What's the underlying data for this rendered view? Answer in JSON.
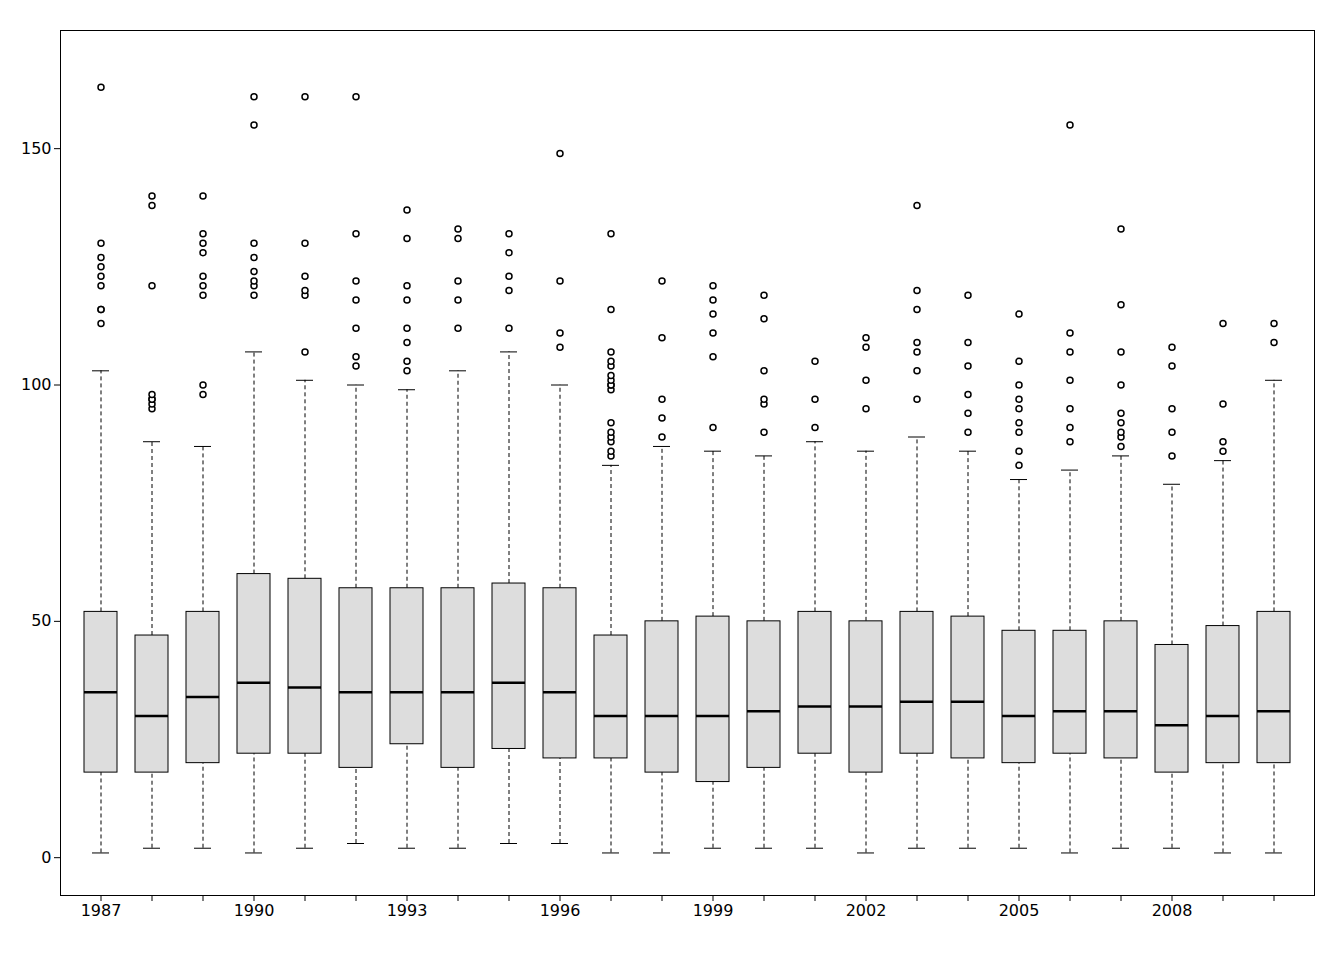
{
  "chart_data": {
    "type": "box",
    "categories": [
      "1987",
      null,
      null,
      "1990",
      null,
      null,
      "1993",
      null,
      null,
      "1996",
      null,
      null,
      "1999",
      null,
      null,
      "2002",
      null,
      null,
      "2005",
      null,
      null,
      "2008",
      null,
      null
    ],
    "values": [
      {
        "whislo": 1,
        "q1": 18,
        "med": 35,
        "q3": 52,
        "whishi": 103,
        "fliers": [
          113,
          116,
          116,
          121,
          123,
          125,
          127,
          130,
          163
        ]
      },
      {
        "whislo": 2,
        "q1": 18,
        "med": 30,
        "q3": 47,
        "whishi": 88,
        "fliers": [
          95,
          96,
          97,
          97,
          98,
          121,
          138,
          140
        ]
      },
      {
        "whislo": 2,
        "q1": 20,
        "med": 34,
        "q3": 52,
        "whishi": 87,
        "fliers": [
          98,
          100,
          119,
          121,
          123,
          128,
          130,
          132,
          140
        ]
      },
      {
        "whislo": 1,
        "q1": 22,
        "med": 37,
        "q3": 60,
        "whishi": 107,
        "fliers": [
          119,
          121,
          122,
          124,
          127,
          130,
          155,
          161
        ]
      },
      {
        "whislo": 2,
        "q1": 22,
        "med": 36,
        "q3": 59,
        "whishi": 101,
        "fliers": [
          107,
          119,
          120,
          123,
          130,
          161
        ]
      },
      {
        "whislo": 3,
        "q1": 19,
        "med": 35,
        "q3": 57,
        "whishi": 100,
        "fliers": [
          104,
          106,
          112,
          118,
          122,
          132,
          161
        ]
      },
      {
        "whislo": 2,
        "q1": 24,
        "med": 35,
        "q3": 57,
        "whishi": 99,
        "fliers": [
          103,
          105,
          109,
          112,
          118,
          121,
          131,
          137
        ]
      },
      {
        "whislo": 2,
        "q1": 19,
        "med": 35,
        "q3": 57,
        "whishi": 103,
        "fliers": [
          112,
          118,
          122,
          131,
          133
        ]
      },
      {
        "whislo": 3,
        "q1": 23,
        "med": 37,
        "q3": 58,
        "whishi": 107,
        "fliers": [
          112,
          120,
          123,
          128,
          132
        ]
      },
      {
        "whislo": 3,
        "q1": 21,
        "med": 35,
        "q3": 57,
        "whishi": 100,
        "fliers": [
          108,
          111,
          122,
          149
        ]
      },
      {
        "whislo": 1,
        "q1": 21,
        "med": 30,
        "q3": 47,
        "whishi": 83,
        "fliers": [
          85,
          86,
          88,
          89,
          90,
          92,
          99,
          100,
          100,
          101,
          102,
          104,
          105,
          107,
          116,
          132
        ]
      },
      {
        "whislo": 1,
        "q1": 18,
        "med": 30,
        "q3": 50,
        "whishi": 87,
        "fliers": [
          89,
          93,
          97,
          110,
          122
        ]
      },
      {
        "whislo": 2,
        "q1": 16,
        "med": 30,
        "q3": 51,
        "whishi": 86,
        "fliers": [
          91,
          106,
          111,
          115,
          118,
          121
        ]
      },
      {
        "whislo": 2,
        "q1": 19,
        "med": 31,
        "q3": 50,
        "whishi": 85,
        "fliers": [
          90,
          96,
          97,
          103,
          114,
          119
        ]
      },
      {
        "whislo": 2,
        "q1": 22,
        "med": 32,
        "q3": 52,
        "whishi": 88,
        "fliers": [
          91,
          97,
          105
        ]
      },
      {
        "whislo": 1,
        "q1": 18,
        "med": 32,
        "q3": 50,
        "whishi": 86,
        "fliers": [
          95,
          101,
          108,
          110
        ]
      },
      {
        "whislo": 2,
        "q1": 22,
        "med": 33,
        "q3": 52,
        "whishi": 89,
        "fliers": [
          97,
          103,
          107,
          109,
          116,
          120,
          138
        ]
      },
      {
        "whislo": 2,
        "q1": 21,
        "med": 33,
        "q3": 51,
        "whishi": 86,
        "fliers": [
          90,
          94,
          98,
          104,
          109,
          119
        ]
      },
      {
        "whislo": 2,
        "q1": 20,
        "med": 30,
        "q3": 48,
        "whishi": 80,
        "fliers": [
          83,
          86,
          90,
          92,
          95,
          97,
          100,
          105,
          115
        ]
      },
      {
        "whislo": 1,
        "q1": 22,
        "med": 31,
        "q3": 48,
        "whishi": 82,
        "fliers": [
          88,
          91,
          95,
          101,
          107,
          111,
          155
        ]
      },
      {
        "whislo": 2,
        "q1": 21,
        "med": 31,
        "q3": 50,
        "whishi": 85,
        "fliers": [
          87,
          89,
          90,
          92,
          94,
          100,
          107,
          117,
          133
        ]
      },
      {
        "whislo": 2,
        "q1": 18,
        "med": 28,
        "q3": 45,
        "whishi": 79,
        "fliers": [
          85,
          90,
          95,
          104,
          108
        ]
      },
      {
        "whislo": 1,
        "q1": 20,
        "med": 30,
        "q3": 49,
        "whishi": 84,
        "fliers": [
          86,
          88,
          96,
          113
        ]
      },
      {
        "whislo": 1,
        "q1": 20,
        "med": 31,
        "q3": 52,
        "whishi": 101,
        "fliers": [
          109,
          113
        ]
      }
    ],
    "ylim": [
      -8,
      175
    ],
    "yticks": [
      0,
      50,
      100,
      150
    ],
    "grid": false
  }
}
